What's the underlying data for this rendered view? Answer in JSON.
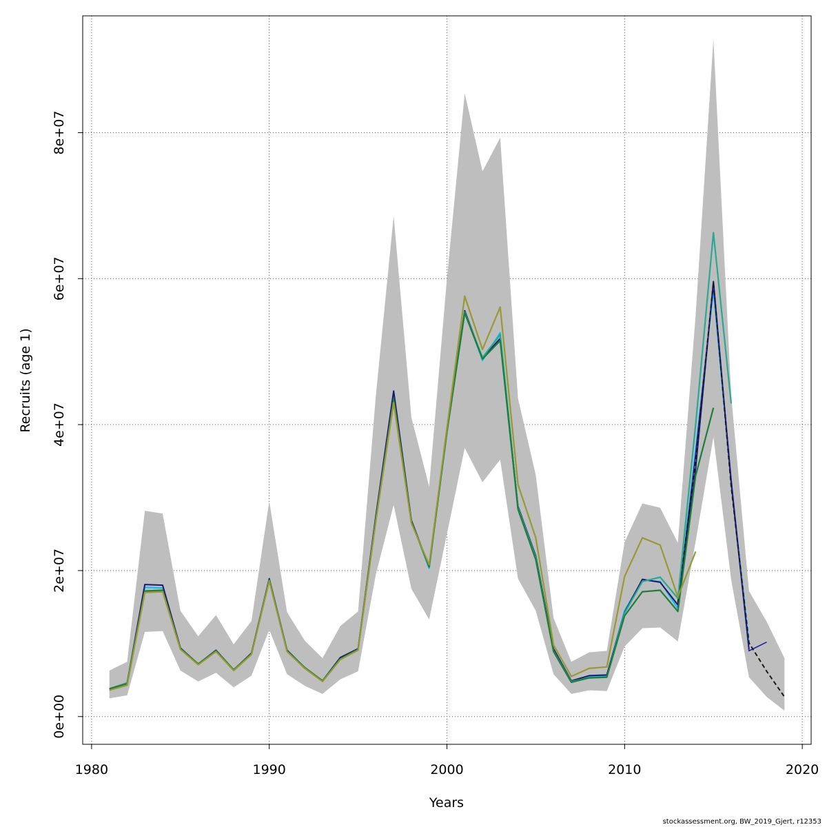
{
  "chart_data": {
    "type": "line",
    "title": "",
    "xlabel": "Years",
    "ylabel": "Recruits (age 1)",
    "xlim": [
      1979.5,
      2020.5
    ],
    "ylim": [
      -3800000,
      96000000
    ],
    "x_ticks": [
      1980,
      1990,
      2000,
      2010,
      2020
    ],
    "x_tick_labels": [
      "1980",
      "1990",
      "2000",
      "2010",
      "2020"
    ],
    "y_ticks": [
      0,
      20000000,
      40000000,
      60000000,
      80000000
    ],
    "y_tick_labels": [
      "0e+00",
      "2e+07",
      "4e+07",
      "6e+07",
      "8e+07"
    ],
    "grid": true,
    "legend": "none",
    "confidence_band": {
      "color": "#bebebe",
      "x": [
        1981,
        1982,
        1983,
        1984,
        1985,
        1986,
        1987,
        1988,
        1989,
        1990,
        1991,
        1992,
        1993,
        1994,
        1995,
        1996,
        1997,
        1998,
        1999,
        2000,
        2001,
        2002,
        2003,
        2004,
        2005,
        2006,
        2007,
        2008,
        2009,
        2010,
        2011,
        2012,
        2013,
        2014,
        2015,
        2016,
        2017,
        2018,
        2019
      ],
      "upper": [
        6300000,
        7500000,
        28200000,
        27800000,
        14500000,
        11000000,
        13900000,
        9900000,
        13100000,
        29500000,
        14300000,
        10400000,
        8000000,
        12400000,
        14400000,
        44000000,
        68600000,
        41000000,
        31500000,
        60000000,
        85400000,
        74700000,
        79300000,
        43600000,
        33100000,
        13500000,
        7500000,
        8800000,
        9000000,
        23900000,
        29200000,
        28600000,
        23800000,
        55000000,
        92800000,
        44000000,
        17200000,
        13000000,
        8000000
      ],
      "lower": [
        2500000,
        2900000,
        11600000,
        11700000,
        6300000,
        4800000,
        6000000,
        4000000,
        5600000,
        11900000,
        5800000,
        4200000,
        3100000,
        5100000,
        6200000,
        19500000,
        29000000,
        17500000,
        13300000,
        25000000,
        36800000,
        32100000,
        35200000,
        18900000,
        14500000,
        5800000,
        3100000,
        3600000,
        3500000,
        9600000,
        12100000,
        12200000,
        10300000,
        24000000,
        38300000,
        18700000,
        5400000,
        2700000,
        800000
      ]
    },
    "series": [
      {
        "color": "#00bfff",
        "width": 2,
        "dash": "",
        "x": [
          1981,
          1982,
          1983,
          1984,
          1985,
          1986,
          1987,
          1988,
          1989,
          1990,
          1991,
          1992,
          1993,
          1994,
          1995,
          1996,
          1997,
          1998,
          1999,
          2000,
          2001,
          2002,
          2003,
          2004,
          2005,
          2006,
          2007,
          2008,
          2009,
          2010,
          2011,
          2012,
          2013,
          2014,
          2015,
          2016,
          2017
        ],
        "values": [
          3800000,
          4500000,
          17700000,
          17600000,
          9300000,
          7200000,
          9000000,
          6400000,
          8600000,
          18800000,
          9000000,
          6700000,
          4900000,
          8000000,
          9300000,
          27000000,
          44000000,
          26800000,
          20300000,
          39000000,
          55500000,
          48800000,
          52600000,
          28600000,
          22000000,
          9200000,
          4800000,
          5500000,
          5600000,
          14500000,
          18700000,
          18500000,
          14800000,
          36500000,
          58500000,
          32000000,
          10000000
        ]
      },
      {
        "color": "#191970",
        "width": 2,
        "dash": "",
        "x": [
          1981,
          1982,
          1983,
          1984,
          1985,
          1986,
          1987,
          1988,
          1989,
          1990,
          1991,
          1992,
          1993,
          1994,
          1995,
          1996,
          1997,
          1998,
          1999,
          2000,
          2001,
          2002,
          2003,
          2004,
          2005,
          2006,
          2007,
          2008,
          2009,
          2010,
          2011,
          2012,
          2013,
          2014,
          2015,
          2016,
          2017
        ],
        "values": [
          3800000,
          4600000,
          18100000,
          18000000,
          9400000,
          7200000,
          9100000,
          6400000,
          8700000,
          18900000,
          9100000,
          6700000,
          4900000,
          8100000,
          9300000,
          27500000,
          44600000,
          26900000,
          20500000,
          39200000,
          55600000,
          49100000,
          51800000,
          28800000,
          22000000,
          9300000,
          4900000,
          5600000,
          5700000,
          14300000,
          18800000,
          18400000,
          15300000,
          34000000,
          59600000,
          32000000,
          9200000
        ]
      },
      {
        "color": "#2020a0",
        "width": 1.6,
        "dash": "",
        "x": [
          2013,
          2014,
          2015,
          2016,
          2017,
          2018
        ],
        "values": [
          15000000,
          36000000,
          59000000,
          32500000,
          9000000,
          10200000
        ]
      },
      {
        "color": "#1a1a1a",
        "width": 2,
        "dash": "6,4",
        "x": [
          2013,
          2014,
          2015,
          2016,
          2017,
          2018,
          2019
        ],
        "values": [
          15600000,
          35000000,
          59500000,
          31500000,
          10100000,
          6200000,
          2700000
        ]
      },
      {
        "color": "#2ba893",
        "width": 2.2,
        "dash": "",
        "x": [
          1981,
          1982,
          1983,
          1984,
          1985,
          1986,
          1987,
          1988,
          1989,
          1990,
          1991,
          1992,
          1993,
          1994,
          1995,
          1996,
          1997,
          1998,
          1999,
          2000,
          2001,
          2002,
          2003,
          2004,
          2005,
          2006,
          2007,
          2008,
          2009,
          2010,
          2011,
          2012,
          2013,
          2014,
          2015,
          2016
        ],
        "values": [
          3800000,
          4600000,
          17200000,
          17300000,
          9300000,
          7200000,
          9000000,
          6400000,
          8600000,
          18700000,
          9000000,
          6700000,
          4900000,
          7900000,
          9200000,
          27000000,
          43500000,
          26700000,
          20500000,
          39000000,
          55400000,
          49200000,
          52300000,
          28600000,
          21800000,
          9000000,
          4800000,
          5300000,
          5400000,
          14200000,
          18500000,
          19100000,
          16200000,
          40000000,
          66300000,
          42900000
        ]
      },
      {
        "color": "#1d7e3b",
        "width": 2.2,
        "dash": "",
        "x": [
          1981,
          1982,
          1983,
          1984,
          1985,
          1986,
          1987,
          1988,
          1989,
          1990,
          1991,
          1992,
          1993,
          1994,
          1995,
          1996,
          1997,
          1998,
          1999,
          2000,
          2001,
          2002,
          2003,
          2004,
          2005,
          2006,
          2007,
          2008,
          2009,
          2010,
          2011,
          2012,
          2013,
          2014,
          2015
        ],
        "values": [
          3800000,
          4500000,
          17200000,
          17300000,
          9300000,
          7200000,
          9000000,
          6400000,
          8600000,
          18700000,
          9000000,
          6700000,
          4900000,
          7900000,
          9200000,
          27000000,
          43500000,
          26700000,
          20500000,
          39000000,
          55300000,
          49000000,
          51500000,
          28400000,
          21500000,
          8900000,
          4700000,
          5300000,
          5400000,
          13800000,
          17100000,
          17300000,
          14400000,
          33000000,
          42300000
        ]
      },
      {
        "color": "#999933",
        "width": 2.2,
        "dash": "",
        "x": [
          1981,
          1982,
          1983,
          1984,
          1985,
          1986,
          1987,
          1988,
          1989,
          1990,
          1991,
          1992,
          1993,
          1994,
          1995,
          1996,
          1997,
          1998,
          1999,
          2000,
          2001,
          2002,
          2003,
          2004,
          2005,
          2006,
          2007,
          2008,
          2009,
          2010,
          2011,
          2012,
          2013,
          2014
        ],
        "values": [
          3600000,
          4300000,
          17000000,
          17100000,
          9200000,
          7100000,
          8900000,
          6300000,
          8500000,
          18600000,
          8900000,
          6600000,
          4800000,
          7800000,
          9100000,
          26800000,
          43000000,
          26500000,
          20800000,
          39500000,
          57600000,
          50300000,
          56100000,
          31800000,
          24500000,
          9800000,
          5500000,
          6600000,
          6800000,
          19200000,
          24500000,
          23500000,
          16400000,
          22600000
        ]
      }
    ]
  },
  "footer": {
    "credit": "stockassessment.org, BW_2019_Gjert, r12353"
  }
}
